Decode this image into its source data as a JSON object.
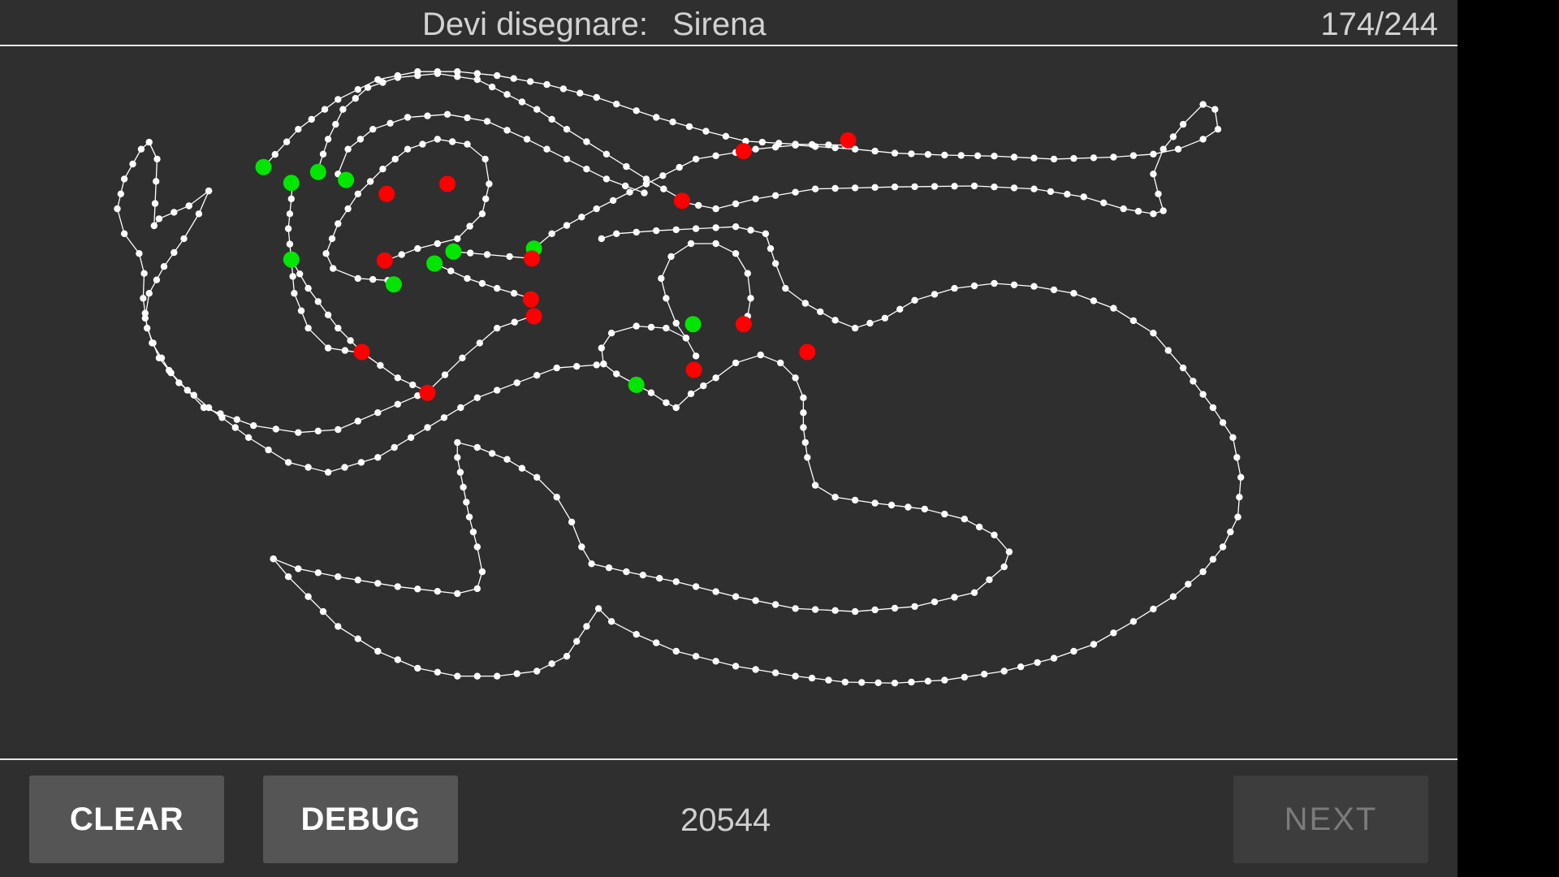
{
  "header": {
    "prompt_label": "Devi disegnare:",
    "prompt_target": "Sirena",
    "progress_counter": "174/244"
  },
  "footer": {
    "clear_label": "CLEAR",
    "debug_label": "DEBUG",
    "score": "20544",
    "next_label": "NEXT",
    "next_enabled": false
  },
  "colors": {
    "background": "#2f2f2f",
    "stroke": "#ffffff",
    "good_marker": "#00e600",
    "bad_marker": "#ff0000",
    "button": "#555555",
    "button_disabled": "#3d3d3d"
  }
}
